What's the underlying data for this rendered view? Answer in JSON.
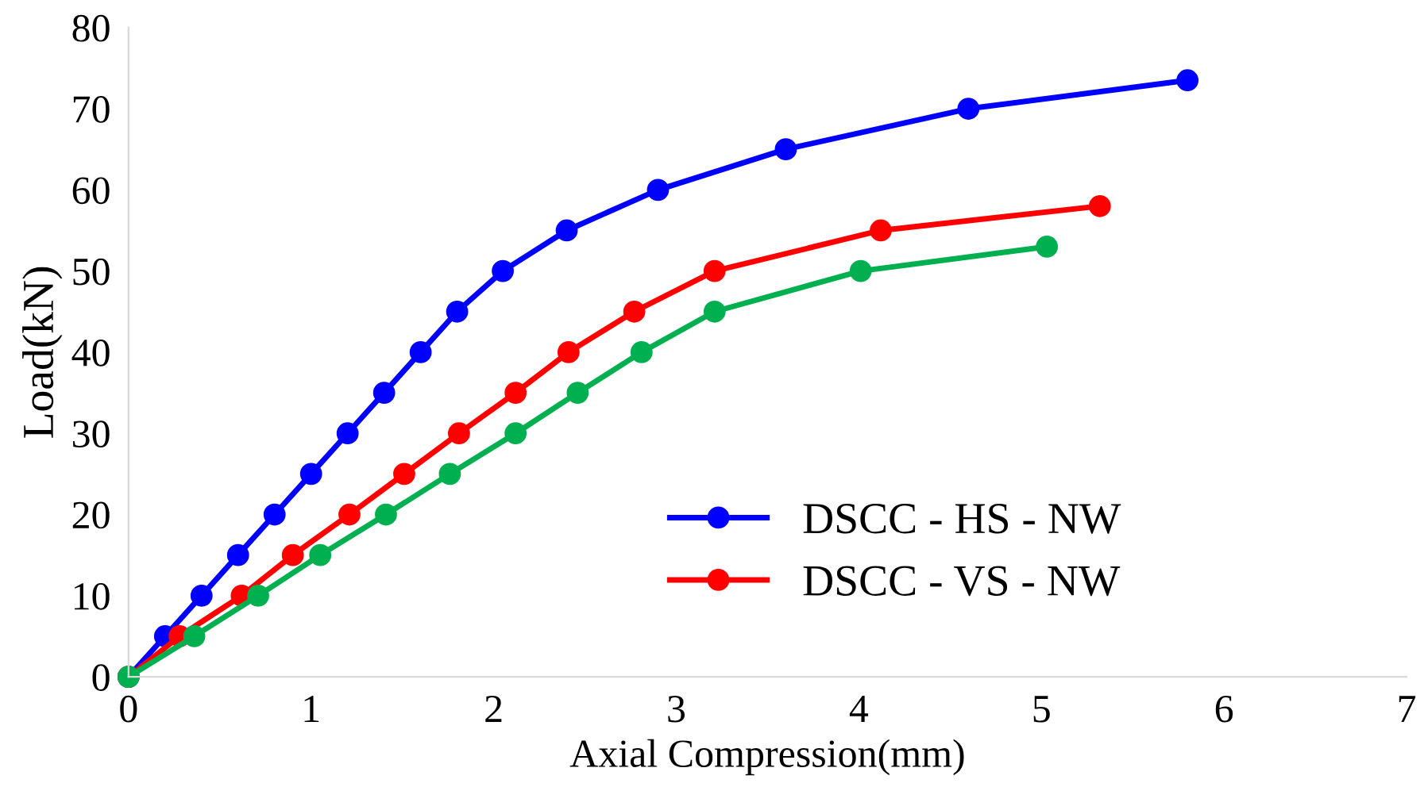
{
  "chart_data": {
    "type": "line",
    "xlabel": "Axial Compression(mm)",
    "ylabel": "Load(kN)",
    "xlim": [
      0,
      7
    ],
    "ylim": [
      0,
      80
    ],
    "xticks": [
      0,
      1,
      2,
      3,
      4,
      5,
      6,
      7
    ],
    "yticks": [
      0,
      10,
      20,
      30,
      40,
      50,
      60,
      70,
      80
    ],
    "grid": false,
    "legend": "bottom",
    "marker": "circle",
    "line_style": "solid",
    "series": [
      {
        "name": "DSCC - HS - NW",
        "color": "#0000ff",
        "x": [
          0,
          0.2,
          0.4,
          0.6,
          0.8,
          1.0,
          1.2,
          1.4,
          1.6,
          1.8,
          2.05,
          2.4,
          2.9,
          3.6,
          4.6,
          5.8
        ],
        "values": [
          0,
          5,
          10,
          15,
          20,
          25,
          30,
          35,
          40,
          45,
          50,
          55,
          60,
          65,
          70,
          73.5
        ]
      },
      {
        "name": "DSCC - VS - NW",
        "color": "#ff0000",
        "x": [
          0,
          0.28,
          0.62,
          0.9,
          1.21,
          1.51,
          1.81,
          2.12,
          2.41,
          2.77,
          3.21,
          4.12,
          5.32
        ],
        "values": [
          0,
          5,
          10,
          15,
          20,
          25,
          30,
          35,
          40,
          45,
          50,
          55,
          58
        ]
      },
      {
        "color": "#00b050",
        "x": [
          0,
          0.36,
          0.71,
          1.05,
          1.41,
          1.76,
          2.12,
          2.46,
          2.81,
          3.21,
          4.01,
          5.03
        ],
        "values": [
          0,
          5,
          10,
          15,
          20,
          25,
          30,
          35,
          40,
          45,
          50,
          53
        ]
      }
    ]
  }
}
